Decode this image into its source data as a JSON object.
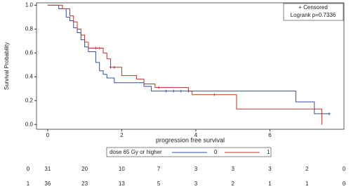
{
  "chart_data": {
    "type": "kaplan-meier",
    "x_label": "progression free survival",
    "y_label": "Survival Probability",
    "xlim": [
      -0.3,
      8
    ],
    "ylim": [
      -0.04,
      1.02
    ],
    "xticks": [
      0,
      2,
      4,
      6
    ],
    "yticks": [
      {
        "value": 0,
        "label": "0.0"
      },
      {
        "value": 0.2,
        "label": "0.2"
      },
      {
        "value": 0.4,
        "label": "0.4"
      },
      {
        "value": 0.6,
        "label": "0.6"
      },
      {
        "value": 0.8,
        "label": "0.8"
      },
      {
        "value": 1,
        "label": "1.0"
      }
    ],
    "inset": [
      "+ Censored",
      "Logrank p=0.7336"
    ],
    "legend_title": "dose 65 Gy or higher",
    "series": [
      {
        "name": "0",
        "color": "#2e4fa8",
        "x": [
          0,
          0.3,
          0.5,
          0.6,
          0.7,
          0.8,
          0.9,
          1.0,
          1.1,
          1.3,
          1.4,
          1.5,
          1.6,
          1.8,
          2.6,
          2.8,
          6.7,
          7.2,
          7.6
        ],
        "values": [
          1,
          0.97,
          0.9,
          0.87,
          0.81,
          0.77,
          0.71,
          0.65,
          0.61,
          0.52,
          0.45,
          0.42,
          0.39,
          0.35,
          0.32,
          0.28,
          0.19,
          0.09,
          0.09
        ],
        "censored_x": [
          3.2,
          3.4,
          3.6,
          3.8,
          7.6
        ],
        "censored_values": [
          0.28,
          0.28,
          0.28,
          0.28,
          0.09
        ]
      },
      {
        "name": "1",
        "color": "#b8352a",
        "x": [
          0,
          0.4,
          0.6,
          0.7,
          0.8,
          0.9,
          1.0,
          1.1,
          1.5,
          1.6,
          1.7,
          2.0,
          2.4,
          2.6,
          2.9,
          3.8,
          3.9,
          5.1,
          7.4
        ],
        "values": [
          1,
          0.97,
          0.91,
          0.86,
          0.8,
          0.75,
          0.69,
          0.64,
          0.6,
          0.55,
          0.48,
          0.41,
          0.38,
          0.34,
          0.31,
          0.28,
          0.25,
          0.13,
          0
        ],
        "censored_x": [
          1.3,
          1.4,
          1.7,
          1.8,
          3.0,
          4.5
        ],
        "censored_values": [
          0.64,
          0.64,
          0.48,
          0.48,
          0.31,
          0.25
        ]
      }
    ],
    "at_risk": [
      {
        "name": "0",
        "values": [
          31,
          20,
          10,
          7,
          3,
          3,
          3,
          2,
          0
        ]
      },
      {
        "name": "1",
        "values": [
          36,
          23,
          13,
          5,
          3,
          2,
          1,
          1,
          0
        ]
      }
    ]
  }
}
